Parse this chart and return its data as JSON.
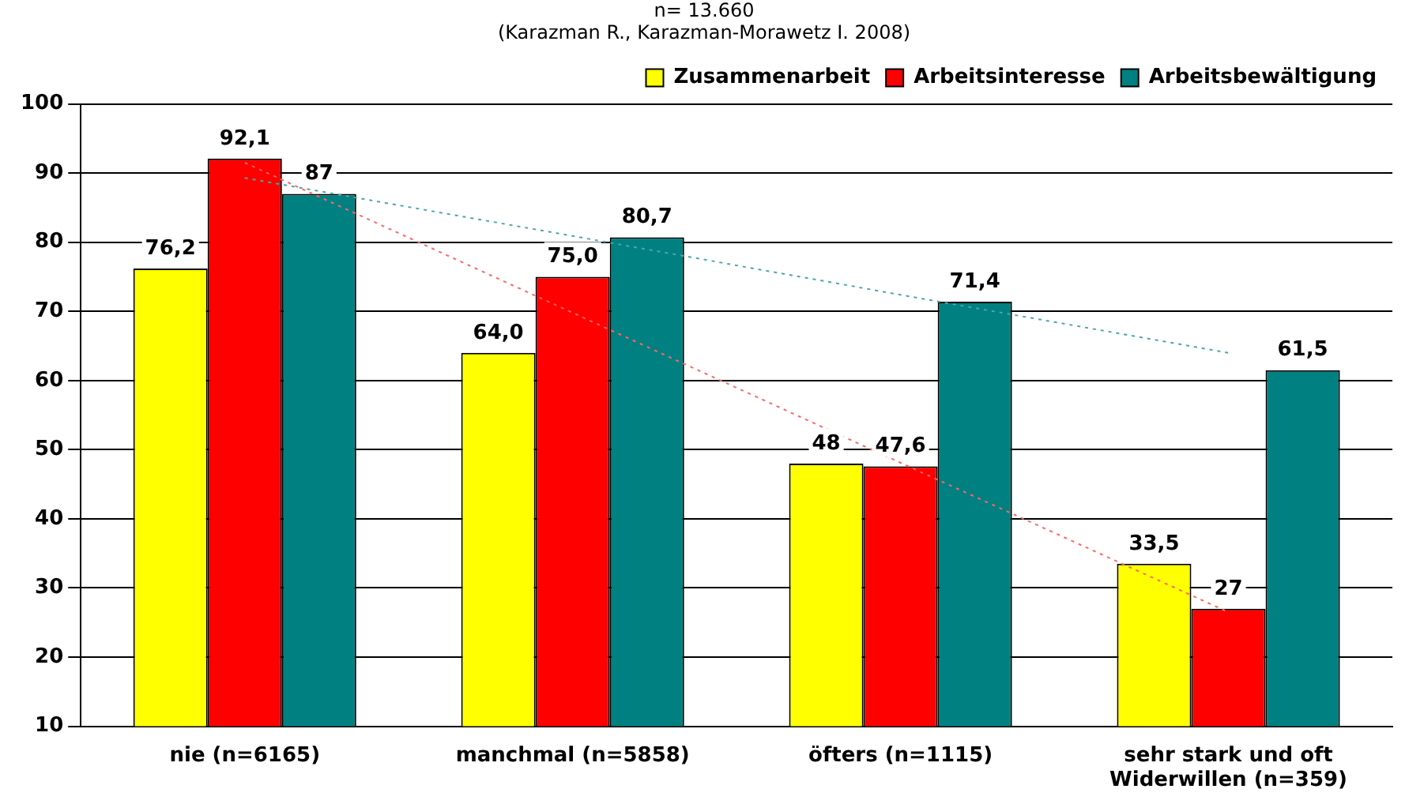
{
  "chart_data": {
    "type": "bar",
    "title": "n= 13.660",
    "subtitle": "(Karazman R., Karazman-Morawetz I. 2008)",
    "categories": [
      "nie (n=6165)",
      "manchmal (n=5858)",
      "öfters (n=1115)",
      "sehr stark und oft Widerwillen (n=359)"
    ],
    "series": [
      {
        "name": "Zusammenarbeit",
        "color": "#ffff00",
        "values": [
          76.2,
          64.0,
          48,
          33.5
        ],
        "value_labels": [
          "76,2",
          "64,0",
          "48",
          "33,5"
        ]
      },
      {
        "name": "Arbeitsinteresse",
        "color": "#ff0000",
        "values": [
          92.1,
          75.0,
          47.6,
          27
        ],
        "value_labels": [
          "92,1",
          "75,0",
          "47,6",
          "27"
        ]
      },
      {
        "name": "Arbeitsbewältigung",
        "color": "#008080",
        "values": [
          87,
          80.7,
          71.4,
          61.5
        ],
        "value_labels": [
          "87",
          "80,7",
          "71,4",
          "61,5"
        ]
      },
      {
        "type": "line",
        "color": "#ff6666",
        "line_style": "dotted",
        "marker": "none",
        "values": [
          91.5,
          69.8,
          48.1,
          26.5
        ]
      },
      {
        "type": "line",
        "color": "#4da6a6",
        "line_style": "dotted",
        "marker": "none",
        "values": [
          89.3,
          80.9,
          72.4,
          64.0
        ]
      }
    ],
    "ylim": [
      10,
      100
    ],
    "yticks": [
      10,
      20,
      30,
      40,
      50,
      60,
      70,
      80,
      90,
      100
    ],
    "grid": "y",
    "legend": "top right"
  }
}
